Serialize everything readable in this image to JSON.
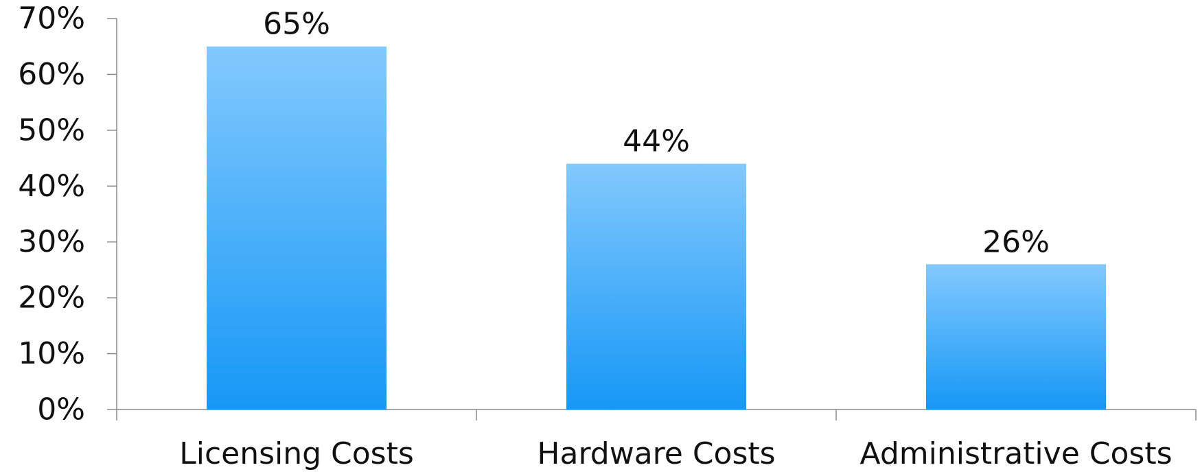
{
  "chart_data": {
    "type": "bar",
    "title": "",
    "xlabel": "",
    "ylabel": "",
    "categories": [
      "Licensing Costs",
      "Hardware Costs",
      "Administrative Costs"
    ],
    "values": [
      65,
      44,
      26
    ],
    "data_labels": [
      "65%",
      "44%",
      "26%"
    ],
    "ylim": [
      0,
      70
    ],
    "y_ticks": [
      0,
      10,
      20,
      30,
      40,
      50,
      60,
      70
    ],
    "y_tick_labels": [
      "0%",
      "10%",
      "20%",
      "30%",
      "40%",
      "50%",
      "60%",
      "70%"
    ],
    "grid": false,
    "legend": "none",
    "colors": {
      "bar_top": "#82c9fd",
      "bar_bottom": "#1698f6",
      "axis": "#888888",
      "text": "#111111"
    }
  }
}
